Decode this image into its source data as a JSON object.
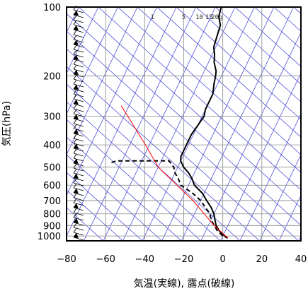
{
  "chart_data": {
    "type": "line",
    "subtype": "skew-T log-P sounding",
    "xlabel": "気温(実線), 露点(破線)",
    "ylabel": "気圧(hPa)",
    "xlim": [
      -80,
      40
    ],
    "ylim": [
      1050,
      100
    ],
    "y_scale": "log",
    "x_ticks": [
      -80,
      -60,
      -40,
      -20,
      0,
      20,
      40
    ],
    "x_tick_labels": [
      "−80",
      "−60",
      "−40",
      "−20",
      "0",
      "20",
      "40"
    ],
    "y_ticks": [
      100,
      200,
      300,
      400,
      500,
      600,
      700,
      800,
      900,
      1000
    ],
    "grid": true,
    "mixing_ratio_labels": [
      "1",
      "5",
      "10",
      "15",
      "20g"
    ],
    "series": [
      {
        "style": "solid",
        "color": "#000000",
        "points": [
          [
            100,
            -57
          ],
          [
            110,
            -56
          ],
          [
            120,
            -53
          ],
          [
            135,
            -52
          ],
          [
            150,
            -51
          ],
          [
            160,
            -49
          ],
          [
            175,
            -47
          ],
          [
            190,
            -44
          ],
          [
            200,
            -43
          ],
          [
            215,
            -42
          ],
          [
            240,
            -40
          ],
          [
            260,
            -40
          ],
          [
            280,
            -40
          ],
          [
            300,
            -39
          ],
          [
            330,
            -40
          ],
          [
            360,
            -41
          ],
          [
            390,
            -41
          ],
          [
            420,
            -41
          ],
          [
            450,
            -41
          ],
          [
            470,
            -40
          ],
          [
            500,
            -37
          ],
          [
            530,
            -33
          ],
          [
            560,
            -30
          ],
          [
            600,
            -27
          ],
          [
            650,
            -21
          ],
          [
            700,
            -17
          ],
          [
            750,
            -13
          ],
          [
            800,
            -10
          ],
          [
            850,
            -8
          ],
          [
            900,
            -6
          ],
          [
            950,
            -3
          ],
          [
            1000,
            1
          ],
          [
            1020,
            3
          ]
        ]
      },
      {
        "style": "dashed",
        "color": "#000000",
        "points": [
          [
            478,
            -75
          ],
          [
            470,
            -73
          ],
          [
            470,
            -65
          ],
          [
            470,
            -55
          ],
          [
            470,
            -46
          ],
          [
            500,
            -42
          ],
          [
            530,
            -40
          ],
          [
            560,
            -37
          ],
          [
            600,
            -34
          ],
          [
            650,
            -26
          ],
          [
            700,
            -20
          ],
          [
            750,
            -16
          ],
          [
            800,
            -12
          ],
          [
            850,
            -10
          ],
          [
            900,
            -7
          ],
          [
            950,
            -4
          ],
          [
            1000,
            0
          ],
          [
            1020,
            3
          ]
        ]
      },
      {
        "style": "solid",
        "color": "#ff0000",
        "points": [
          [
            1020,
            3
          ],
          [
            900,
            -7
          ],
          [
            800,
            -15
          ],
          [
            700,
            -24
          ],
          [
            600,
            -36
          ],
          [
            500,
            -50
          ],
          [
            400,
            -62
          ],
          [
            300,
            -78
          ],
          [
            270,
            -84
          ]
        ]
      }
    ]
  }
}
